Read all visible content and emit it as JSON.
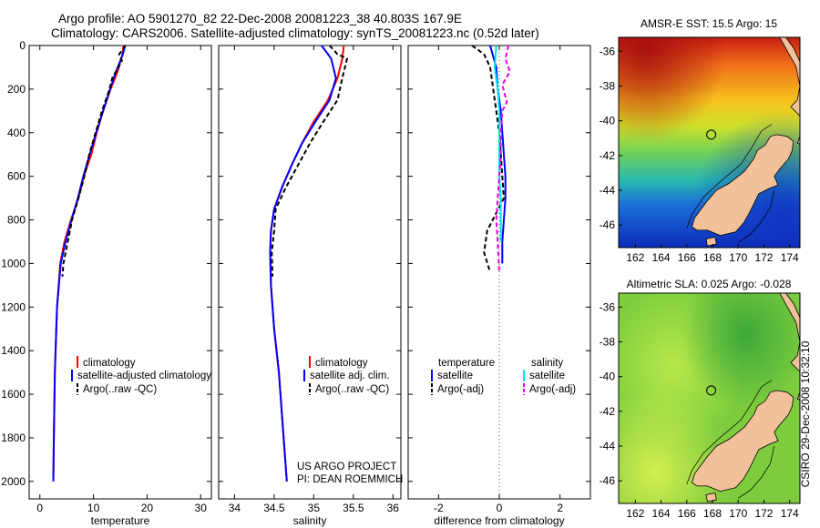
{
  "header": {
    "line1": "Argo profile: AO 5901270_82 22-Dec-2008 20081223_38 40.803S 167.9E",
    "line2": "Climatology: CARS2006. Satellite-adjusted climatology: synTS_20081223.nc (0.52d later)"
  },
  "colors": {
    "clim": "#ff0000",
    "sat": "#0000ff",
    "argo": "#000000",
    "sal_sat": "#00e5e5",
    "sal_argo": "#ee00ee",
    "land": "#f2c19a"
  },
  "chart_data": [
    {
      "type": "line",
      "id": "temperature",
      "xlabel": "temperature",
      "xlim": [
        -2,
        32
      ],
      "xticks": [
        0,
        10,
        20,
        30
      ],
      "ylim": [
        2080,
        0
      ],
      "yticks": [
        0,
        200,
        400,
        600,
        800,
        1000,
        1200,
        1400,
        1600,
        1800,
        2000
      ],
      "series": [
        {
          "name": "climatology",
          "color": "#ff0000",
          "dash": "",
          "x": [
            15.6,
            15.4,
            14.5,
            13.2,
            11.8,
            10.6,
            9.6,
            8.2,
            7.2,
            5.8,
            4.6,
            3.8,
            3.2,
            2.8,
            2.6,
            2.5
          ],
          "y": [
            0,
            40,
            120,
            200,
            300,
            400,
            500,
            600,
            700,
            800,
            900,
            1000,
            1200,
            1500,
            1800,
            2000
          ]
        },
        {
          "name": "satellite-adjusted climatology",
          "color": "#0000ff",
          "dash": "",
          "x": [
            15.9,
            15.5,
            14.2,
            13.1,
            11.8,
            10.5,
            9.3,
            8.1,
            7.1,
            5.9,
            4.8,
            3.9,
            3.2,
            2.8,
            2.6,
            2.5
          ],
          "y": [
            0,
            40,
            120,
            200,
            300,
            400,
            500,
            600,
            700,
            800,
            900,
            1000,
            1200,
            1500,
            1800,
            2000
          ]
        },
        {
          "name": "Argo(..raw -QC)",
          "color": "#000000",
          "dash": "5,3",
          "x": [
            16.0,
            14.8,
            15.3,
            13.5,
            13.0,
            11.6,
            10.4,
            9.2,
            8.3,
            7.2,
            6.0,
            5.2,
            4.4,
            4.2
          ],
          "y": [
            0,
            40,
            70,
            150,
            200,
            300,
            400,
            500,
            600,
            700,
            800,
            900,
            1000,
            1060
          ]
        }
      ],
      "legend": [
        "climatology",
        "satellite-adjusted climatology",
        "Argo(..raw -QC)"
      ]
    },
    {
      "type": "line",
      "id": "salinity",
      "xlabel": "salinity",
      "xlim": [
        33.8,
        36.1
      ],
      "xticks": [
        34,
        34.5,
        35,
        35.5,
        36
      ],
      "xtick_labels": [
        "34",
        "34.5",
        "35",
        "35.5",
        "36"
      ],
      "ylim": [
        2080,
        0
      ],
      "series": [
        {
          "name": "climatology",
          "color": "#ff0000",
          "dash": "",
          "x": [
            35.38,
            35.36,
            35.3,
            35.18,
            35.0,
            34.85,
            34.72,
            34.6,
            34.5,
            34.46,
            34.45,
            34.46,
            34.5,
            34.56,
            34.62,
            34.66
          ],
          "y": [
            0,
            60,
            150,
            250,
            350,
            450,
            550,
            650,
            750,
            850,
            950,
            1100,
            1300,
            1500,
            1800,
            2000
          ]
        },
        {
          "name": "satellite adj. clim.",
          "color": "#0000ff",
          "dash": "",
          "x": [
            35.1,
            35.22,
            35.28,
            35.2,
            35.02,
            34.85,
            34.72,
            34.6,
            34.5,
            34.46,
            34.45,
            34.46,
            34.5,
            34.56,
            34.62,
            34.66
          ],
          "y": [
            0,
            60,
            150,
            250,
            350,
            450,
            550,
            650,
            750,
            850,
            950,
            1100,
            1300,
            1500,
            1800,
            2000
          ]
        },
        {
          "name": "Argo(..raw -QC)",
          "color": "#000000",
          "dash": "5,3",
          "x": [
            35.2,
            35.3,
            35.42,
            35.36,
            35.3,
            35.12,
            34.95,
            34.8,
            34.65,
            34.52,
            34.5,
            34.47,
            34.48
          ],
          "y": [
            0,
            40,
            60,
            150,
            250,
            350,
            450,
            550,
            650,
            750,
            850,
            950,
            1060
          ]
        }
      ],
      "legend": [
        "climatology",
        "satellite adj. clim.",
        "Argo(..raw -QC)"
      ]
    },
    {
      "type": "line",
      "id": "difference",
      "xlabel": "difference from climatology",
      "xlim": [
        -3,
        3
      ],
      "xticks": [
        -2,
        0,
        2
      ],
      "ylim": [
        2080,
        0
      ],
      "series": [
        {
          "name": "temperature satellite",
          "color": "#0000ff",
          "dash": "",
          "x": [
            -0.3,
            -0.2,
            -0.1,
            -0.05,
            0.05,
            0.1,
            0.15,
            0.2,
            0.2,
            0.15,
            0.1,
            0.1
          ],
          "y": [
            0,
            50,
            100,
            200,
            300,
            400,
            500,
            600,
            700,
            800,
            900,
            1000
          ]
        },
        {
          "name": "temperature Argo(-adj)",
          "color": "#000000",
          "dash": "5,3",
          "x": [
            -0.9,
            -0.5,
            -0.3,
            -0.2,
            -0.1,
            0.0,
            0.05,
            0.1,
            0.15,
            -0.4,
            -0.5,
            -0.3
          ],
          "y": [
            0,
            40,
            100,
            200,
            300,
            400,
            500,
            600,
            700,
            850,
            950,
            1040
          ]
        },
        {
          "name": "salinity satellite",
          "color": "#00e5e5",
          "dash": "",
          "x": [
            -0.1,
            -0.15,
            -0.05,
            0.0,
            0.0,
            0.0,
            0.0,
            0.05,
            0.05,
            0.05
          ],
          "y": [
            0,
            100,
            200,
            300,
            400,
            500,
            600,
            700,
            800,
            900
          ]
        },
        {
          "name": "salinity Argo(-adj)",
          "color": "#ee00ee",
          "dash": "5,3",
          "x": [
            0.3,
            0.2,
            0.35,
            0.1,
            0.25,
            0.1,
            0.05,
            0.05,
            0.0,
            -0.1,
            -0.05,
            0.0
          ],
          "y": [
            0,
            60,
            120,
            180,
            260,
            300,
            400,
            500,
            600,
            800,
            900,
            1040
          ]
        }
      ],
      "legend_headers": [
        "temperature",
        "salinity"
      ],
      "legend_left": [
        "satellite",
        "Argo(-adj)"
      ],
      "legend_right": [
        "satellite",
        "Argo(-adj)"
      ]
    }
  ],
  "maps": {
    "sst_title": "AMSR-E SST: 15.5 Argo: 15",
    "sla_title": "Altimetric SLA: 0.025 Argo: -0.028",
    "lon_ticks": [
      162,
      164,
      166,
      168,
      170,
      172,
      174
    ],
    "lat_ticks": [
      -36,
      -38,
      -40,
      -42,
      -44,
      -46
    ],
    "lon_range": [
      160.7,
      174.8
    ],
    "lat_range": [
      -47.3,
      -35.2
    ],
    "profile_lon": 167.9,
    "profile_lat": -40.8
  },
  "credits": {
    "project": "US ARGO PROJECT",
    "pi": "PI: DEAN ROEMMICH",
    "stamp": "CSIRO 29-Dec-2008 10:32:10"
  }
}
